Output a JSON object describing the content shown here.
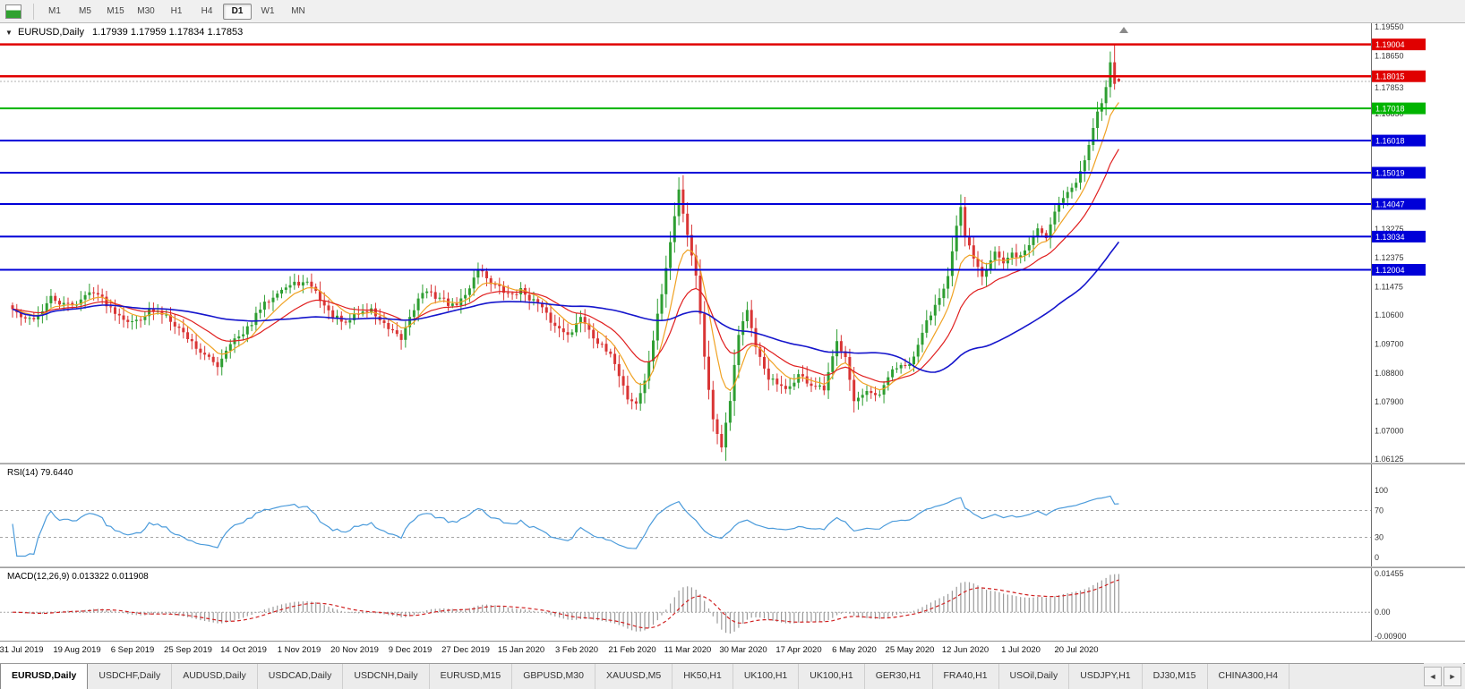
{
  "toolbar": {
    "timeframes": [
      "M1",
      "M5",
      "M15",
      "M30",
      "H1",
      "H4",
      "D1",
      "W1",
      "MN"
    ],
    "active_timeframe": "D1"
  },
  "chart": {
    "symbol_period": "EURUSD,Daily",
    "ohlc_text": "1.17939 1.17959 1.17834 1.17853"
  },
  "price_axis": {
    "ticks": [
      "1.19550",
      "1.18650",
      "1.16850",
      "1.13275",
      "1.12375",
      "1.11475",
      "1.10600",
      "1.09700",
      "1.08800",
      "1.07900",
      "1.07000",
      "1.06125"
    ],
    "current_price": "1.17853"
  },
  "hlines": [
    {
      "price": 1.19004,
      "label": "1.19004",
      "color": "#e00000",
      "width": 2.5
    },
    {
      "price": 1.18015,
      "label": "1.18015",
      "color": "#e00000",
      "width": 2.5
    },
    {
      "price": 1.17018,
      "label": "1.17018",
      "color": "#00b400",
      "width": 2
    },
    {
      "price": 1.16018,
      "label": "1.16018",
      "color": "#0000d8",
      "width": 2
    },
    {
      "price": 1.15019,
      "label": "1.15019",
      "color": "#0000d8",
      "width": 2
    },
    {
      "price": 1.14047,
      "label": "1.14047",
      "color": "#0000d8",
      "width": 2
    },
    {
      "price": 1.13034,
      "label": "1.13034",
      "color": "#0000d8",
      "width": 2
    },
    {
      "price": 1.12004,
      "label": "1.12004",
      "color": "#0000d8",
      "width": 2
    }
  ],
  "rsi": {
    "label": "RSI(14) 79.6440",
    "period": 14,
    "last_value": 79.644,
    "ticks": [
      "100",
      "70",
      "30",
      "0"
    ],
    "level_lines": [
      70,
      30
    ]
  },
  "macd": {
    "label": "MACD(12,26,9) 0.013322 0.011908",
    "params": [
      12,
      26,
      9
    ],
    "last_main": 0.013322,
    "last_signal": 0.011908,
    "ticks": [
      "0.01455",
      "0.00",
      "-0.00900"
    ],
    "range": [
      -0.009,
      0.01455
    ]
  },
  "chart_data": {
    "type": "candlestick",
    "symbol": "EURUSD",
    "timeframe": "Daily",
    "y_range": [
      1.06125,
      1.1955
    ],
    "bar_count": 260,
    "first_label_bar": 2,
    "label_every_bars": 13,
    "dates": [
      "31 Jul 2019",
      "19 Aug 2019",
      "6 Sep 2019",
      "25 Sep 2019",
      "14 Oct 2019",
      "1 Nov 2019",
      "20 Nov 2019",
      "9 Dec 2019",
      "27 Dec 2019",
      "15 Jan 2020",
      "3 Feb 2020",
      "21 Feb 2020",
      "11 Mar 2020",
      "30 Mar 2020",
      "17 Apr 2020",
      "6 May 2020",
      "25 May 2020",
      "12 Jun 2020",
      "1 Jul 2020",
      "20 Jul 2020"
    ],
    "close_anchors": [
      [
        0,
        1.1078
      ],
      [
        3,
        1.1042
      ],
      [
        6,
        1.1058
      ],
      [
        9,
        1.1112
      ],
      [
        12,
        1.109
      ],
      [
        15,
        1.1098
      ],
      [
        19,
        1.1138
      ],
      [
        23,
        1.1082
      ],
      [
        28,
        1.1035
      ],
      [
        32,
        1.1072
      ],
      [
        36,
        1.1062
      ],
      [
        41,
        1.099
      ],
      [
        45,
        1.0932
      ],
      [
        48,
        1.0904
      ],
      [
        51,
        1.0978
      ],
      [
        54,
        1.0996
      ],
      [
        58,
        1.1078
      ],
      [
        62,
        1.1136
      ],
      [
        67,
        1.116
      ],
      [
        70,
        1.1152
      ],
      [
        74,
        1.1068
      ],
      [
        78,
        1.1028
      ],
      [
        80,
        1.1062
      ],
      [
        84,
        1.1076
      ],
      [
        88,
        1.1012
      ],
      [
        91,
        1.0984
      ],
      [
        93,
        1.1058
      ],
      [
        96,
        1.1132
      ],
      [
        100,
        1.1114
      ],
      [
        103,
        1.1086
      ],
      [
        106,
        1.1118
      ],
      [
        109,
        1.1208
      ],
      [
        112,
        1.1162
      ],
      [
        116,
        1.1122
      ],
      [
        119,
        1.1136
      ],
      [
        123,
        1.1094
      ],
      [
        127,
        1.1024
      ],
      [
        131,
        1.1002
      ],
      [
        133,
        1.1058
      ],
      [
        137,
        1.0976
      ],
      [
        141,
        1.0914
      ],
      [
        144,
        1.0802
      ],
      [
        146,
        1.0786
      ],
      [
        148,
        1.0852
      ],
      [
        150,
        1.0984
      ],
      [
        152,
        1.1128
      ],
      [
        154,
        1.1284
      ],
      [
        156,
        1.1448
      ],
      [
        158,
        1.1312
      ],
      [
        160,
        1.1186
      ],
      [
        162,
        1.0936
      ],
      [
        164,
        1.0732
      ],
      [
        166,
        1.0656
      ],
      [
        168,
        1.0802
      ],
      [
        170,
        1.1004
      ],
      [
        172,
        1.1078
      ],
      [
        174,
        1.0952
      ],
      [
        177,
        1.0866
      ],
      [
        181,
        1.0822
      ],
      [
        184,
        1.0874
      ],
      [
        187,
        1.0842
      ],
      [
        190,
        1.0826
      ],
      [
        193,
        1.0974
      ],
      [
        195,
        1.0938
      ],
      [
        197,
        1.0792
      ],
      [
        200,
        1.0814
      ],
      [
        203,
        1.0806
      ],
      [
        206,
        1.0894
      ],
      [
        209,
        1.0898
      ],
      [
        211,
        1.0922
      ],
      [
        213,
        1.1008
      ],
      [
        216,
        1.1094
      ],
      [
        219,
        1.1178
      ],
      [
        221,
        1.1328
      ],
      [
        222,
        1.1388
      ],
      [
        223,
        1.1302
      ],
      [
        225,
        1.1242
      ],
      [
        227,
        1.1186
      ],
      [
        230,
        1.1258
      ],
      [
        232,
        1.1216
      ],
      [
        234,
        1.1248
      ],
      [
        236,
        1.1242
      ],
      [
        238,
        1.1278
      ],
      [
        240,
        1.133
      ],
      [
        242,
        1.1302
      ],
      [
        244,
        1.1388
      ],
      [
        246,
        1.1428
      ],
      [
        249,
        1.1468
      ],
      [
        251,
        1.1548
      ],
      [
        253,
        1.1648
      ],
      [
        255,
        1.1718
      ],
      [
        256,
        1.1768
      ],
      [
        257,
        1.1845
      ],
      [
        258,
        1.1778
      ],
      [
        259,
        1.17853
      ]
    ],
    "last_bar": {
      "open": 1.17939,
      "high": 1.17959,
      "low": 1.17834,
      "close": 1.17853
    },
    "spike_bar": {
      "index": 258,
      "high": 1.19004,
      "low": 1.176
    },
    "moving_averages": [
      {
        "period": 8,
        "type": "ema",
        "color_key": "ma_fast"
      },
      {
        "period": 20,
        "type": "ema",
        "color_key": "ma_med"
      },
      {
        "period": 55,
        "type": "sma",
        "color_key": "ma_slow"
      }
    ]
  },
  "tabs": {
    "active_index": 0,
    "items": [
      "EURUSD,Daily",
      "USDCHF,Daily",
      "AUDUSD,Daily",
      "USDCAD,Daily",
      "USDCNH,Daily",
      "EURUSD,M15",
      "GBPUSD,M30",
      "XAUUSD,M5",
      "HK50,H1",
      "UK100,H1",
      "UK100,H1",
      "GER30,H1",
      "FRA40,H1",
      "USOil,Daily",
      "USDJPY,H1",
      "DJ30,M15",
      "CHINA300,H4"
    ]
  },
  "icons": {
    "collapse": "▼",
    "scroll_left": "◄",
    "scroll_right": "►"
  },
  "colors": {
    "candle_up": "#2e9e32",
    "candle_down": "#d93535",
    "ma_fast": "#f0a223",
    "ma_med": "#e01f1f",
    "ma_slow": "#1515cc",
    "rsi_line": "#4b9bdb",
    "level_dash": "#a5a5a5",
    "macd_hist": "#9b9b9b",
    "macd_signal": "#d02020",
    "bid_line": "#b0b0b0",
    "axis_text": "#333333",
    "separator": "#6f6f6f"
  }
}
